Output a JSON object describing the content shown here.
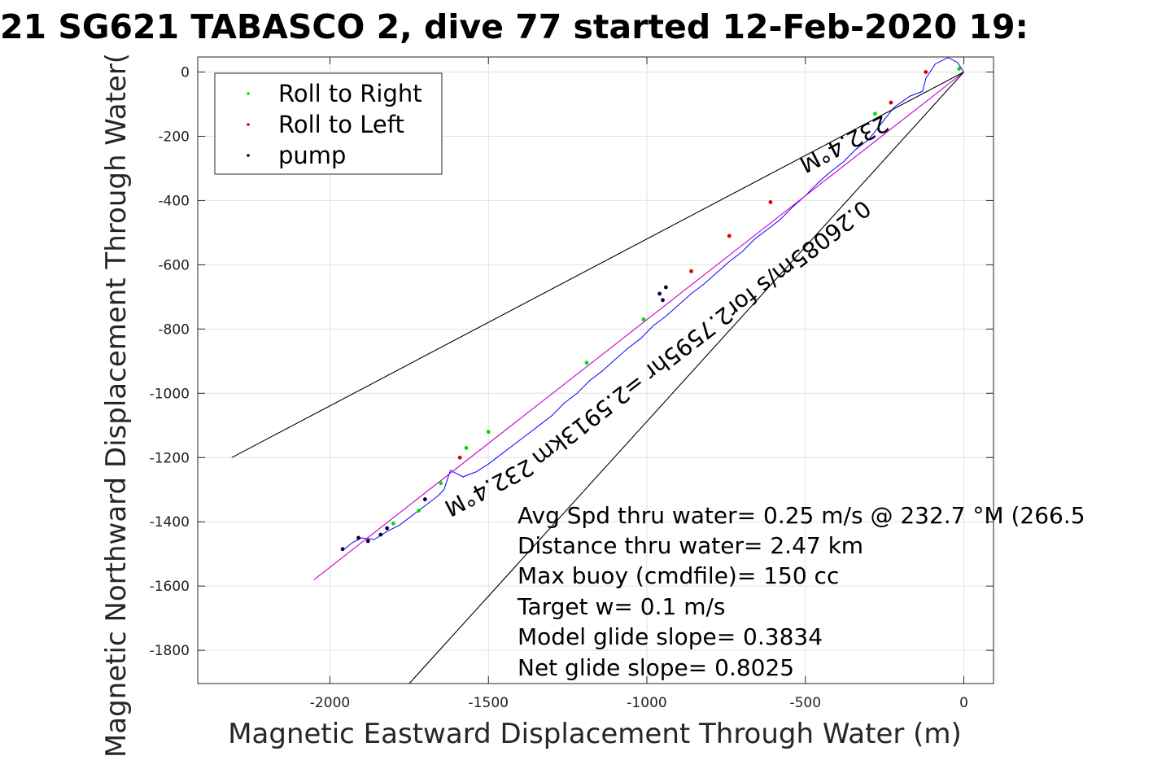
{
  "chart_data": {
    "type": "line",
    "title": "21 SG621 TABASCO 2, dive 77 started 12-Feb-2020 19:",
    "xlabel": "Magnetic Eastward Displacement Through Water (m)",
    "ylabel": "Magnetic Northward Displacement Through Water(",
    "xlim": [
      -2400,
      100
    ],
    "ylim": [
      -1910,
      45
    ],
    "xticks": [
      -2000,
      -1500,
      -1000,
      -500,
      0
    ],
    "xtick_labels": [
      "-2000",
      "-1500",
      "-1000",
      "-500",
      "0"
    ],
    "yticks": [
      0,
      -200,
      -400,
      -600,
      -800,
      -1000,
      -1200,
      -1400,
      -1600,
      -1800
    ],
    "ytick_labels": [
      "0",
      "-200",
      "-400",
      "-600",
      "-800",
      "-1000",
      "-1200",
      "-1400",
      "-1600",
      "-1800"
    ],
    "grid": true,
    "legend": {
      "placement": "top-left",
      "entries": [
        {
          "label": "Roll to Right",
          "color": "#00dd00"
        },
        {
          "label": "Roll to Left",
          "color": "#dd0000"
        },
        {
          "label": "pump",
          "color": "#000033"
        }
      ]
    },
    "series": [
      {
        "color": "#0000ff",
        "x": [
          0,
          -20,
          -50,
          -90,
          -120,
          -130,
          -170,
          -220,
          -260,
          -300,
          -340,
          -380,
          -420,
          -460,
          -500,
          -540,
          -580,
          -620,
          -660,
          -700,
          -740,
          -780,
          -820,
          -860,
          -900,
          -940,
          -980,
          -1020,
          -1060,
          -1100,
          -1140,
          -1180,
          -1220,
          -1260,
          -1300,
          -1340,
          -1380,
          -1420,
          -1460,
          -1500,
          -1540,
          -1580,
          -1620,
          -1640,
          -1660,
          -1700,
          -1740,
          -1780,
          -1820,
          -1860,
          -1900,
          -1930,
          -1960
        ],
        "y": [
          0,
          30,
          45,
          25,
          -20,
          -60,
          -75,
          -110,
          -160,
          -210,
          -240,
          -280,
          -310,
          -345,
          -385,
          -420,
          -460,
          -490,
          -520,
          -560,
          -590,
          -625,
          -660,
          -690,
          -725,
          -760,
          -790,
          -830,
          -860,
          -895,
          -930,
          -960,
          -1000,
          -1030,
          -1070,
          -1100,
          -1130,
          -1160,
          -1190,
          -1220,
          -1245,
          -1260,
          -1240,
          -1300,
          -1320,
          -1350,
          -1380,
          -1410,
          -1430,
          -1455,
          -1450,
          -1465,
          -1490
        ]
      },
      {
        "color": "#cc00cc",
        "x": [
          0,
          -2050
        ],
        "y": [
          0,
          -1580
        ]
      },
      {
        "color": "#000000",
        "x": [
          0,
          -2310
        ],
        "y": [
          0,
          -1200
        ]
      },
      {
        "color": "#000000",
        "x": [
          0,
          -1750
        ],
        "y": [
          0,
          -1910
        ]
      }
    ],
    "markers": {
      "roll_right": {
        "color": "#00dd00",
        "x": [
          -15,
          -280,
          -1010,
          -1190,
          -1500,
          -1570,
          -1650,
          -1720,
          -1800
        ],
        "y": [
          10,
          -130,
          -770,
          -905,
          -1120,
          -1170,
          -1280,
          -1365,
          -1405
        ]
      },
      "roll_left": {
        "color": "#dd0000",
        "x": [
          -120,
          -230,
          -610,
          -740,
          -860,
          -1590
        ],
        "y": [
          0,
          -95,
          -405,
          -510,
          -620,
          -1200
        ]
      },
      "pump": {
        "color": "#000033",
        "x": [
          -960,
          -940,
          -950,
          -1700,
          -1840,
          -1880,
          -1910,
          -1960,
          -1820
        ],
        "y": [
          -690,
          -670,
          -710,
          -1330,
          -1440,
          -1460,
          -1450,
          -1485,
          -1420
        ]
      }
    },
    "rotated_annotations": [
      {
        "text": "232.4°M",
        "x": -1500,
        "y": -1290,
        "angle": 152.4
      },
      {
        "text": "0.26085m/s for2.7595hr =2.5913km",
        "x": -830,
        "y": -810,
        "angle": 142.4
      },
      {
        "text": "232.4°M",
        "x": -380,
        "y": -220,
        "angle": 152.4
      }
    ],
    "annotations": [
      "Avg Spd thru water=  0.25 m/s @ 232.7 °M (266.5",
      "Distance thru water=  2.47 km",
      "Max buoy (cmdfile)= 150 cc",
      "Target w= 0.1 m/s",
      "Model glide slope= 0.3834",
      "Net glide slope= 0.8025"
    ]
  }
}
